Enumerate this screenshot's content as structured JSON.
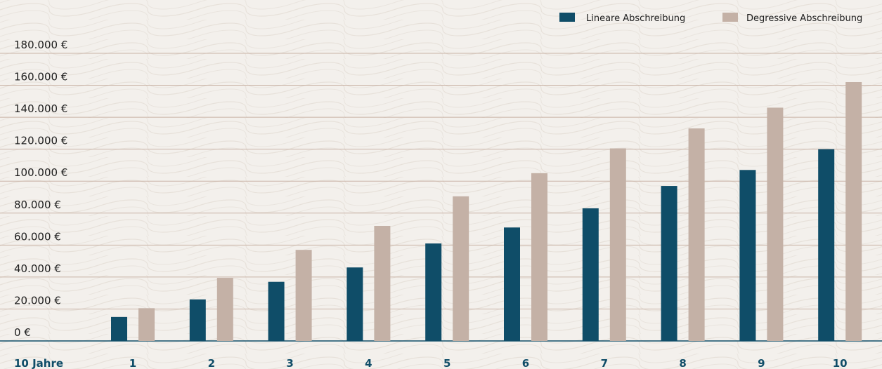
{
  "chart_data": {
    "type": "bar",
    "title": "",
    "xlabel": "10 Jahre",
    "ylabel": "",
    "categories": [
      "1",
      "2",
      "3",
      "4",
      "5",
      "6",
      "7",
      "8",
      "9",
      "10"
    ],
    "series": [
      {
        "name": "Lineare Abschreibung",
        "color": "#0f4d68",
        "values": [
          15000,
          26000,
          37000,
          46000,
          61000,
          71000,
          83000,
          97000,
          107000,
          120000
        ]
      },
      {
        "name": "Degressive Abschreibung",
        "color": "#c4b1a6",
        "values": [
          20500,
          39500,
          57000,
          72000,
          90500,
          105000,
          120500,
          133000,
          146000,
          162000
        ]
      }
    ],
    "ylim": [
      0,
      180000
    ],
    "yticks": [
      0,
      20000,
      40000,
      60000,
      80000,
      100000,
      120000,
      140000,
      160000,
      180000
    ],
    "ytick_labels": [
      "0 €",
      "20.000 €",
      "40.000 €",
      "60.000 €",
      "80.000 €",
      "100.000 €",
      "120.000 €",
      "140.000 €",
      "160.000 €",
      "180.000 €"
    ],
    "grid": true,
    "legend": "top-right"
  }
}
